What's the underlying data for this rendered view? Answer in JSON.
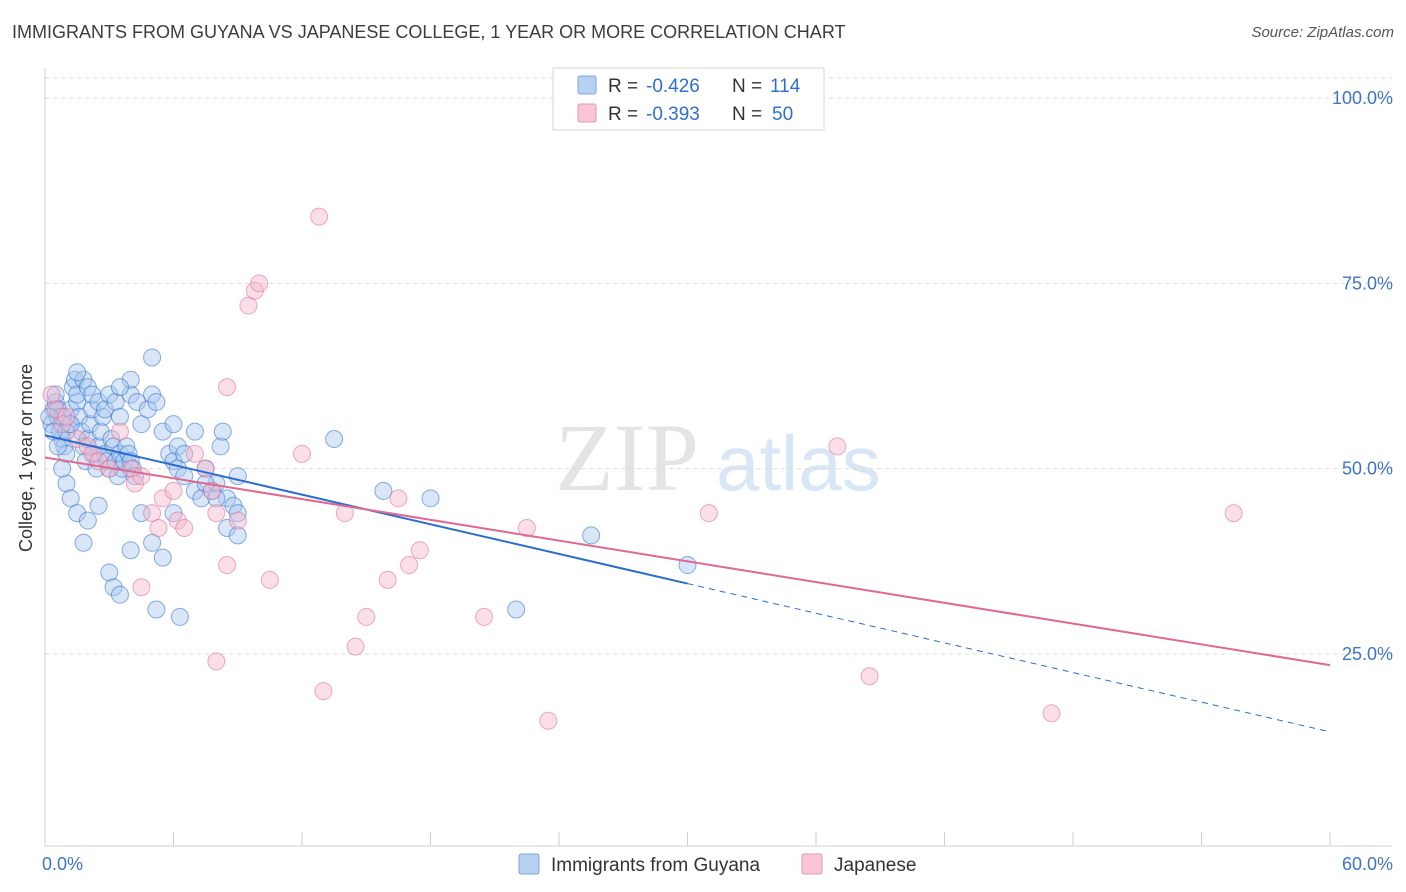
{
  "title": "IMMIGRANTS FROM GUYANA VS JAPANESE COLLEGE, 1 YEAR OR MORE CORRELATION CHART",
  "source": "Source: ZipAtlas.com",
  "watermark": {
    "zip": "ZIP",
    "atlas": "atlas"
  },
  "colors": {
    "blue": "#2a6dd0",
    "blue_fill": "#a9c8f0",
    "pink": "#e0688f",
    "pink_fill": "#f5b8cb",
    "tick_text": "#3f74c6",
    "grid": "#dcdcdc"
  },
  "legend": [
    {
      "r_label": "R =",
      "r_value": "-0.426",
      "n_label": "N =",
      "n_value": "114"
    },
    {
      "r_label": "R =",
      "r_value": "-0.393",
      "n_label": "N =",
      "n_value": "50"
    }
  ],
  "chart_data": {
    "type": "scatter",
    "xlabel": "",
    "ylabel": "College, 1 year or more",
    "xlim": [
      0,
      60
    ],
    "ylim": [
      0,
      105
    ],
    "x_tick_labels": [
      "0.0%",
      "60.0%"
    ],
    "y_ticks": [
      {
        "value": 100,
        "label": "100.0%"
      },
      {
        "value": 75,
        "label": "75.0%"
      },
      {
        "value": 50,
        "label": "50.0%"
      },
      {
        "value": 25,
        "label": "25.0%"
      }
    ],
    "grid": "horizontal dashed",
    "legend_position": "top-center",
    "series": [
      {
        "name": "Immigrants from Guyana",
        "color": "blue",
        "trend": {
          "x0": 0,
          "y0": 54.5,
          "x1": 30,
          "y1": 34.5,
          "dash_to_x": 60,
          "dash_to_y": 14.5
        },
        "points": [
          [
            0.3,
            56
          ],
          [
            0.4,
            58
          ],
          [
            0.5,
            59
          ],
          [
            0.6,
            57
          ],
          [
            0.7,
            55
          ],
          [
            0.8,
            54
          ],
          [
            0.9,
            53
          ],
          [
            1.0,
            52
          ],
          [
            1.1,
            56
          ],
          [
            1.2,
            58
          ],
          [
            1.3,
            61
          ],
          [
            1.4,
            62
          ],
          [
            1.5,
            59
          ],
          [
            1.6,
            57
          ],
          [
            1.7,
            55
          ],
          [
            1.8,
            53
          ],
          [
            1.9,
            51
          ],
          [
            2.0,
            54
          ],
          [
            2.1,
            56
          ],
          [
            2.2,
            58
          ],
          [
            2.3,
            52
          ],
          [
            2.4,
            50
          ],
          [
            2.5,
            53
          ],
          [
            2.6,
            55
          ],
          [
            2.7,
            57
          ],
          [
            2.8,
            52
          ],
          [
            2.9,
            51
          ],
          [
            3.0,
            50
          ],
          [
            3.1,
            54
          ],
          [
            3.2,
            53
          ],
          [
            3.3,
            51
          ],
          [
            3.4,
            49
          ],
          [
            3.5,
            52
          ],
          [
            3.6,
            50
          ],
          [
            3.7,
            51
          ],
          [
            3.8,
            53
          ],
          [
            3.9,
            52
          ],
          [
            4.0,
            51
          ],
          [
            4.1,
            50
          ],
          [
            4.2,
            49
          ],
          [
            0.5,
            60
          ],
          [
            0.6,
            58
          ],
          [
            0.8,
            57
          ],
          [
            1.0,
            55
          ],
          [
            1.2,
            56
          ],
          [
            1.5,
            60
          ],
          [
            1.8,
            62
          ],
          [
            2.0,
            61
          ],
          [
            2.2,
            60
          ],
          [
            2.5,
            59
          ],
          [
            2.8,
            58
          ],
          [
            3.0,
            60
          ],
          [
            3.3,
            59
          ],
          [
            3.5,
            57
          ],
          [
            4.0,
            60
          ],
          [
            4.3,
            59
          ],
          [
            4.5,
            56
          ],
          [
            4.8,
            58
          ],
          [
            5.0,
            60
          ],
          [
            5.2,
            59
          ],
          [
            5.5,
            55
          ],
          [
            5.8,
            52
          ],
          [
            6.0,
            51
          ],
          [
            6.2,
            50
          ],
          [
            6.5,
            49
          ],
          [
            7.0,
            47
          ],
          [
            7.3,
            46
          ],
          [
            7.8,
            47
          ],
          [
            8.0,
            48
          ],
          [
            8.5,
            46
          ],
          [
            8.8,
            45
          ],
          [
            9.0,
            44
          ],
          [
            6.0,
            56
          ],
          [
            6.2,
            53
          ],
          [
            6.5,
            52
          ],
          [
            7.0,
            55
          ],
          [
            7.5,
            50
          ],
          [
            8.0,
            46
          ],
          [
            8.5,
            42
          ],
          [
            9.0,
            41
          ],
          [
            1.0,
            48
          ],
          [
            1.2,
            46
          ],
          [
            1.5,
            44
          ],
          [
            1.8,
            40
          ],
          [
            2.0,
            43
          ],
          [
            2.5,
            45
          ],
          [
            3.0,
            36
          ],
          [
            3.2,
            34
          ],
          [
            3.5,
            33
          ],
          [
            4.0,
            39
          ],
          [
            4.5,
            44
          ],
          [
            5.0,
            40
          ],
          [
            5.5,
            38
          ],
          [
            6.0,
            44
          ],
          [
            5.2,
            31
          ],
          [
            6.3,
            30
          ],
          [
            7.5,
            48
          ],
          [
            8.2,
            53
          ],
          [
            9.0,
            49
          ],
          [
            8.3,
            55
          ],
          [
            5.0,
            65
          ],
          [
            4.0,
            62
          ],
          [
            1.5,
            63
          ],
          [
            3.5,
            61
          ],
          [
            13.5,
            54
          ],
          [
            15.8,
            47
          ],
          [
            18.0,
            46
          ],
          [
            22.0,
            31
          ],
          [
            25.5,
            41
          ],
          [
            30.0,
            37
          ],
          [
            0.2,
            57
          ],
          [
            0.4,
            55
          ],
          [
            0.6,
            53
          ],
          [
            0.8,
            50
          ]
        ]
      },
      {
        "name": "Japanese",
        "color": "pink",
        "trend": {
          "x0": 0,
          "y0": 51.5,
          "x1": 60,
          "y1": 23.5
        },
        "points": [
          [
            0.5,
            58
          ],
          [
            0.8,
            56
          ],
          [
            1.0,
            57
          ],
          [
            1.5,
            54
          ],
          [
            2.0,
            53
          ],
          [
            2.2,
            52
          ],
          [
            2.5,
            51
          ],
          [
            3.0,
            50
          ],
          [
            3.5,
            55
          ],
          [
            4.0,
            50
          ],
          [
            4.2,
            48
          ],
          [
            4.5,
            49
          ],
          [
            5.0,
            44
          ],
          [
            5.3,
            42
          ],
          [
            5.5,
            46
          ],
          [
            6.0,
            47
          ],
          [
            6.2,
            43
          ],
          [
            6.5,
            42
          ],
          [
            7.0,
            52
          ],
          [
            7.5,
            50
          ],
          [
            7.8,
            47
          ],
          [
            8.0,
            44
          ],
          [
            8.5,
            37
          ],
          [
            8.0,
            24
          ],
          [
            8.5,
            61
          ],
          [
            9.0,
            43
          ],
          [
            9.5,
            72
          ],
          [
            9.8,
            74
          ],
          [
            10.0,
            75
          ],
          [
            10.5,
            35
          ],
          [
            12.0,
            52
          ],
          [
            13.0,
            20
          ],
          [
            12.8,
            84
          ],
          [
            14.0,
            44
          ],
          [
            14.5,
            26
          ],
          [
            15.0,
            30
          ],
          [
            16.0,
            35
          ],
          [
            16.5,
            46
          ],
          [
            17.0,
            37
          ],
          [
            17.5,
            39
          ],
          [
            20.5,
            30
          ],
          [
            22.5,
            42
          ],
          [
            23.5,
            16
          ],
          [
            31.0,
            44
          ],
          [
            37.0,
            53
          ],
          [
            38.5,
            22
          ],
          [
            47.0,
            17
          ],
          [
            55.5,
            44
          ],
          [
            0.3,
            60
          ],
          [
            4.5,
            34
          ]
        ]
      }
    ]
  },
  "bottom_legend": [
    "Immigrants from Guyana",
    "Japanese"
  ]
}
